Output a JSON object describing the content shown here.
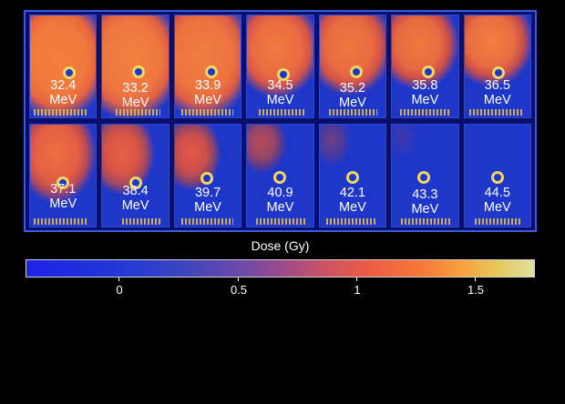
{
  "films": [
    {
      "energy": "32.4",
      "unit": "MeV"
    },
    {
      "energy": "33.2",
      "unit": "MeV"
    },
    {
      "energy": "33.9",
      "unit": "MeV"
    },
    {
      "energy": "34.5",
      "unit": "MeV"
    },
    {
      "energy": "35.2",
      "unit": "MeV"
    },
    {
      "energy": "35.8",
      "unit": "MeV"
    },
    {
      "energy": "36.5",
      "unit": "MeV"
    },
    {
      "energy": "37.1",
      "unit": "MeV"
    },
    {
      "energy": "38.4",
      "unit": "MeV"
    },
    {
      "energy": "39.7",
      "unit": "MeV"
    },
    {
      "energy": "40.9",
      "unit": "MeV"
    },
    {
      "energy": "42.1",
      "unit": "MeV"
    },
    {
      "energy": "43.3",
      "unit": "MeV"
    },
    {
      "energy": "44.5",
      "unit": "MeV"
    }
  ],
  "colorbar": {
    "title": "Dose (Gy)",
    "ticks": [
      "0",
      "0.5",
      "1",
      "1.5"
    ]
  }
}
